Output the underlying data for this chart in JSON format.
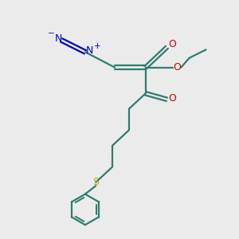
{
  "bg_color": "#ebebeb",
  "bond_color": "#2d7d6e",
  "n_color": "#0000cc",
  "o_color": "#cc0000",
  "s_color": "#ccaa00",
  "line_width": 1.6,
  "figsize": [
    3.0,
    3.0
  ],
  "dpi": 100,
  "xlim": [
    0,
    10
  ],
  "ylim": [
    0,
    10
  ]
}
